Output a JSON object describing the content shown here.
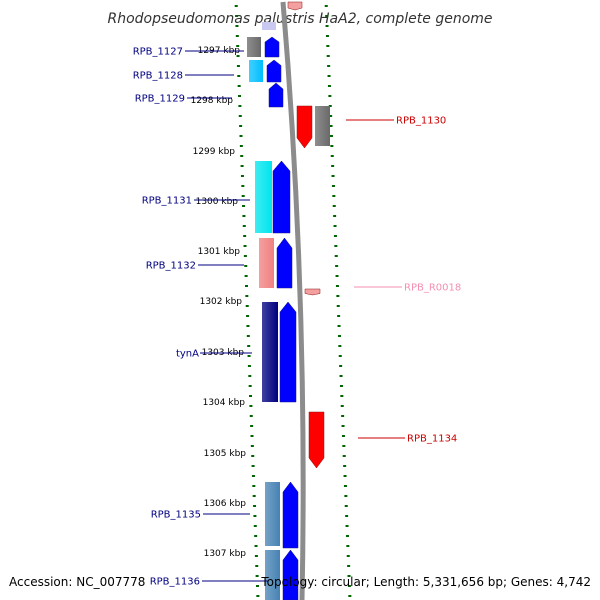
{
  "title": "Rhodopseudomonas palustris HaA2, complete genome",
  "footer": {
    "accession": "Accession: NC_007778",
    "topology": "Topology: circular; Length: 5,331,656 bp; Genes: 4,742"
  },
  "colors": {
    "forward_cds": "#0000ff",
    "reverse_cds": "#ff0000",
    "backbone": "#808080",
    "tick": "#006400",
    "left_label": "#000080",
    "right_label": "#cc0000",
    "rna_label": "#f48fb1"
  },
  "scale": {
    "unit": "kbp",
    "ticks": [
      "1297 kbp",
      "1298 kbp",
      "1299 kbp",
      "1300 kbp",
      "1301 kbp",
      "1302 kbp",
      "1303 kbp",
      "1304 kbp",
      "1305 kbp",
      "1306 kbp",
      "1307 kbp"
    ]
  },
  "genes": [
    {
      "label": "RPB_1127",
      "strand": "+",
      "side": "left",
      "cog_color": "#696969"
    },
    {
      "label": "RPB_1128",
      "strand": "+",
      "side": "left",
      "cog_color": "#00bfff"
    },
    {
      "label": "RPB_1129",
      "strand": "+",
      "side": "left",
      "cog_color": ""
    },
    {
      "label": "RPB_1130",
      "strand": "-",
      "side": "right",
      "cog_color": "#696969"
    },
    {
      "label": "RPB_1131",
      "strand": "+",
      "side": "left",
      "cog_color": "#00e5ee"
    },
    {
      "label": "RPB_1132",
      "strand": "+",
      "side": "left",
      "cog_color": "#f08080"
    },
    {
      "label": "RPB_R0018",
      "strand": "-",
      "side": "right",
      "cog_color": ""
    },
    {
      "label": "tynA",
      "strand": "+",
      "side": "left",
      "cog_color": "#000080"
    },
    {
      "label": "RPB_1134",
      "strand": "-",
      "side": "right",
      "cog_color": ""
    },
    {
      "label": "RPB_1135",
      "strand": "+",
      "side": "left",
      "cog_color": "#4682b4"
    },
    {
      "label": "RPB_1136",
      "strand": "+",
      "side": "left",
      "cog_color": "#4682b4"
    }
  ]
}
